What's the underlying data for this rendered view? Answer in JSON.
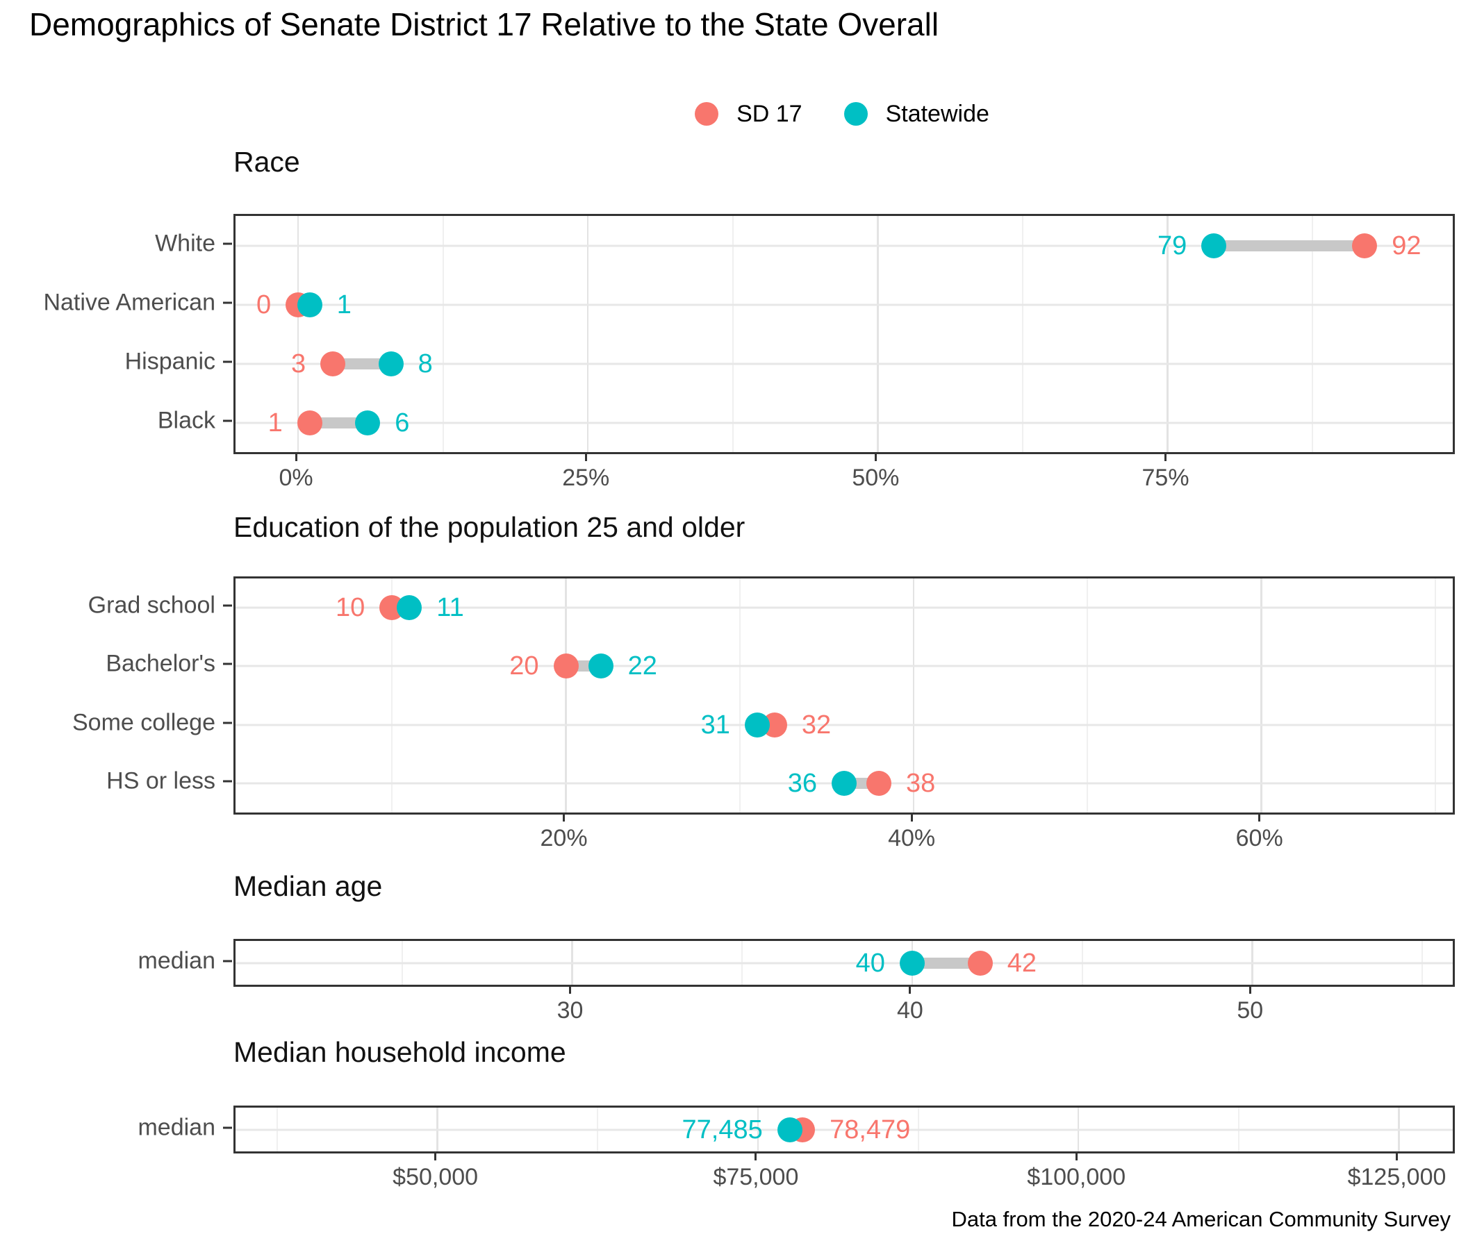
{
  "title": "Demographics of Senate District 17 Relative to the State Overall",
  "caption": "Data from the 2020-24 American Community Survey",
  "colors": {
    "sd17": "#F8766D",
    "statewide": "#00BFC4",
    "connector": "#C8C8C8",
    "axis_text": "#4d4d4d",
    "panel_border": "#333333"
  },
  "legend": {
    "position": "top-center",
    "items": [
      {
        "label": "SD 17",
        "color": "#F8766D"
      },
      {
        "label": "Statewide",
        "color": "#00BFC4"
      }
    ]
  },
  "chart_data": [
    {
      "type": "scatter",
      "variant": "dumbbell",
      "title": "Race",
      "categories": [
        "White",
        "Native American",
        "Hispanic",
        "Black"
      ],
      "series": [
        {
          "name": "SD 17",
          "color": "#F8766D",
          "values": [
            92,
            0,
            3,
            1
          ],
          "labels": [
            "92",
            "0",
            "3",
            "1"
          ]
        },
        {
          "name": "Statewide",
          "color": "#00BFC4",
          "values": [
            79,
            1,
            8,
            6
          ],
          "labels": [
            "79",
            "1",
            "8",
            "6"
          ]
        }
      ],
      "xlim": [
        -5.4,
        99.6
      ],
      "x_ticks": [
        {
          "v": 0,
          "label": "0%"
        },
        {
          "v": 25,
          "label": "25%"
        },
        {
          "v": 50,
          "label": "50%"
        },
        {
          "v": 75,
          "label": "75%"
        }
      ],
      "x_minor": [
        12.5,
        37.5,
        62.5,
        87.5
      ],
      "grid": true,
      "legend_position": "top"
    },
    {
      "type": "scatter",
      "variant": "dumbbell",
      "title": "Education of the population 25 and older",
      "categories": [
        "Grad school",
        "Bachelor's",
        "Some college",
        "HS or less"
      ],
      "series": [
        {
          "name": "SD 17",
          "color": "#F8766D",
          "values": [
            10,
            20,
            32,
            38
          ],
          "labels": [
            "10",
            "20",
            "32",
            "38"
          ]
        },
        {
          "name": "Statewide",
          "color": "#00BFC4",
          "values": [
            11,
            22,
            31,
            36
          ],
          "labels": [
            "11",
            "22",
            "31",
            "36"
          ]
        }
      ],
      "xlim": [
        1,
        71
      ],
      "x_ticks": [
        {
          "v": 20,
          "label": "20%"
        },
        {
          "v": 40,
          "label": "40%"
        },
        {
          "v": 60,
          "label": "60%"
        }
      ],
      "x_minor": [
        10,
        30,
        50,
        70
      ],
      "grid": true
    },
    {
      "type": "scatter",
      "variant": "dumbbell",
      "title": "Median age",
      "categories": [
        "median"
      ],
      "series": [
        {
          "name": "SD 17",
          "color": "#F8766D",
          "values": [
            42
          ],
          "labels": [
            "42"
          ]
        },
        {
          "name": "Statewide",
          "color": "#00BFC4",
          "values": [
            40
          ],
          "labels": [
            "40"
          ]
        }
      ],
      "xlim": [
        20.1,
        55.9
      ],
      "x_ticks": [
        {
          "v": 30,
          "label": "30"
        },
        {
          "v": 40,
          "label": "40"
        },
        {
          "v": 50,
          "label": "50"
        }
      ],
      "x_minor": [
        25,
        35,
        45,
        55
      ],
      "grid": true
    },
    {
      "type": "scatter",
      "variant": "dumbbell",
      "title": "Median household income",
      "categories": [
        "median"
      ],
      "series": [
        {
          "name": "SD 17",
          "color": "#F8766D",
          "values": [
            78479
          ],
          "labels": [
            "78,479"
          ]
        },
        {
          "name": "Statewide",
          "color": "#00BFC4",
          "values": [
            77485
          ],
          "labels": [
            "77,485"
          ]
        }
      ],
      "xlim": [
        34250,
        129200
      ],
      "x_ticks": [
        {
          "v": 50000,
          "label": "$50,000"
        },
        {
          "v": 75000,
          "label": "$75,000"
        },
        {
          "v": 100000,
          "label": "$100,000"
        },
        {
          "v": 125000,
          "label": "$125,000"
        }
      ],
      "x_minor": [
        37500,
        62500,
        87500,
        112500
      ],
      "grid": true
    }
  ]
}
